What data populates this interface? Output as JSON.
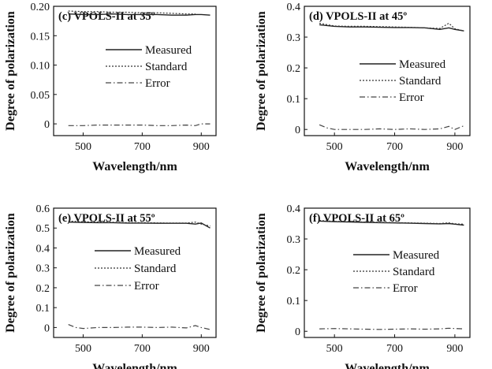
{
  "chart_data": [
    {
      "type": "line",
      "title": "(c) VPOLS-II at 35º",
      "xlabel": "Wavelength/nm",
      "ylabel": "Degree of polarization",
      "xlim": [
        400,
        950
      ],
      "ylim": [
        -0.02,
        0.2
      ],
      "xticks": [
        500,
        700,
        900
      ],
      "yticks": [
        0,
        0.05,
        0.1,
        0.15,
        0.2
      ],
      "ytick_labels": [
        "0",
        "0.05",
        "0.10",
        "0.15",
        "0.20"
      ],
      "legend_position": "right",
      "series": [
        {
          "name": "Measured",
          "style": "solid",
          "x": [
            450,
            500,
            550,
            600,
            650,
            700,
            750,
            800,
            850,
            880,
            900,
            930
          ],
          "y": [
            0.187,
            0.186,
            0.186,
            0.187,
            0.186,
            0.186,
            0.186,
            0.185,
            0.185,
            0.186,
            0.186,
            0.185
          ]
        },
        {
          "name": "Standard",
          "style": "dotted",
          "x": [
            450,
            500,
            550,
            600,
            650,
            700,
            750,
            800,
            850,
            880
          ],
          "y": [
            0.192,
            0.191,
            0.191,
            0.19,
            0.19,
            0.189,
            0.189,
            0.188,
            0.187,
            0.187
          ]
        },
        {
          "name": "Error",
          "style": "dashdot",
          "x": [
            450,
            500,
            550,
            600,
            650,
            700,
            750,
            800,
            850,
            880,
            900,
            930
          ],
          "y": [
            -0.003,
            -0.003,
            -0.002,
            -0.002,
            -0.002,
            -0.002,
            -0.003,
            -0.003,
            -0.002,
            -0.003,
            0.0,
            0.0
          ]
        }
      ]
    },
    {
      "type": "line",
      "title": "(d) VPOLS-II at 45º",
      "xlabel": "Wavelength/nm",
      "ylabel": "Degree of polarization",
      "xlim": [
        400,
        950
      ],
      "ylim": [
        -0.02,
        0.4
      ],
      "xticks": [
        500,
        700,
        900
      ],
      "yticks": [
        0,
        0.1,
        0.2,
        0.3,
        0.4
      ],
      "ytick_labels": [
        "0",
        "0.1",
        "0.2",
        "0.3",
        "0.4"
      ],
      "legend_position": "right",
      "series": [
        {
          "name": "Measured",
          "style": "solid",
          "x": [
            450,
            500,
            550,
            600,
            650,
            700,
            750,
            800,
            850,
            880,
            900,
            930
          ],
          "y": [
            0.34,
            0.335,
            0.333,
            0.333,
            0.332,
            0.331,
            0.331,
            0.33,
            0.325,
            0.33,
            0.325,
            0.32
          ]
        },
        {
          "name": "Standard",
          "style": "dotted",
          "x": [
            450,
            500,
            550,
            600,
            650,
            700,
            750,
            800,
            850,
            880,
            900,
            930
          ],
          "y": [
            0.345,
            0.336,
            0.335,
            0.335,
            0.334,
            0.333,
            0.332,
            0.33,
            0.328,
            0.345,
            0.327,
            0.32
          ]
        },
        {
          "name": "Error",
          "style": "dashdot",
          "x": [
            450,
            475,
            500,
            550,
            600,
            650,
            700,
            750,
            800,
            850,
            880,
            900,
            930
          ],
          "y": [
            0.015,
            0.005,
            0.0,
            0.0,
            0.0,
            0.002,
            0.0,
            0.002,
            0.0,
            0.002,
            0.01,
            0.0,
            0.012
          ]
        }
      ]
    },
    {
      "type": "line",
      "title": "(e) VPOLS-II at 55º",
      "xlabel": "Wavelength/nm",
      "ylabel": "Degree of polarization",
      "xlim": [
        400,
        950
      ],
      "ylim": [
        -0.05,
        0.6
      ],
      "xticks": [
        500,
        700,
        900
      ],
      "yticks": [
        0,
        0.1,
        0.2,
        0.3,
        0.4,
        0.5,
        0.6
      ],
      "ytick_labels": [
        "0",
        "0.1",
        "0.2",
        "0.3",
        "0.4",
        "0.5",
        "0.6"
      ],
      "legend_position": "right",
      "series": [
        {
          "name": "Measured",
          "style": "solid",
          "x": [
            450,
            500,
            550,
            600,
            650,
            700,
            750,
            800,
            850,
            880,
            900,
            930
          ],
          "y": [
            0.53,
            0.528,
            0.527,
            0.527,
            0.525,
            0.525,
            0.524,
            0.524,
            0.524,
            0.52,
            0.525,
            0.5
          ]
        },
        {
          "name": "Standard",
          "style": "dotted",
          "x": [
            450,
            500,
            550,
            600,
            650,
            700,
            750,
            800,
            850,
            880,
            900,
            930
          ],
          "y": [
            0.535,
            0.532,
            0.53,
            0.529,
            0.527,
            0.527,
            0.526,
            0.525,
            0.525,
            0.53,
            0.52,
            0.51
          ]
        },
        {
          "name": "Error",
          "style": "dashdot",
          "x": [
            450,
            475,
            500,
            550,
            600,
            650,
            700,
            750,
            800,
            850,
            880,
            900,
            930
          ],
          "y": [
            0.015,
            0.0,
            -0.005,
            0.0,
            0.0,
            0.002,
            0.002,
            0.0,
            0.002,
            -0.002,
            0.01,
            0.0,
            -0.01
          ]
        }
      ]
    },
    {
      "type": "line",
      "title": "(f) VPOLS-II at 65º",
      "xlabel": "Wavelength/nm",
      "ylabel": "Degree of polarization",
      "xlim": [
        400,
        950
      ],
      "ylim": [
        -0.02,
        0.4
      ],
      "xticks": [
        500,
        700,
        900
      ],
      "yticks": [
        0,
        0.1,
        0.2,
        0.3,
        0.4
      ],
      "ytick_labels": [
        "0",
        "0.1",
        "0.2",
        "0.3",
        "0.4"
      ],
      "legend_position": "right",
      "series": [
        {
          "name": "Measured",
          "style": "solid",
          "x": [
            450,
            500,
            550,
            600,
            650,
            700,
            750,
            800,
            850,
            880,
            900,
            930
          ],
          "y": [
            0.358,
            0.356,
            0.355,
            0.354,
            0.353,
            0.352,
            0.351,
            0.35,
            0.349,
            0.35,
            0.348,
            0.345
          ]
        },
        {
          "name": "Standard",
          "style": "dotted",
          "x": [
            450,
            500,
            550,
            600,
            650,
            700,
            750,
            800,
            850,
            880,
            900,
            930
          ],
          "y": [
            0.36,
            0.357,
            0.356,
            0.355,
            0.354,
            0.353,
            0.352,
            0.351,
            0.35,
            0.352,
            0.349,
            0.348
          ]
        },
        {
          "name": "Error",
          "style": "dashdot",
          "x": [
            450,
            500,
            550,
            600,
            650,
            700,
            750,
            800,
            850,
            880,
            900,
            930
          ],
          "y": [
            0.008,
            0.009,
            0.008,
            0.007,
            0.006,
            0.007,
            0.008,
            0.007,
            0.008,
            0.01,
            0.009,
            0.008
          ]
        }
      ]
    }
  ]
}
